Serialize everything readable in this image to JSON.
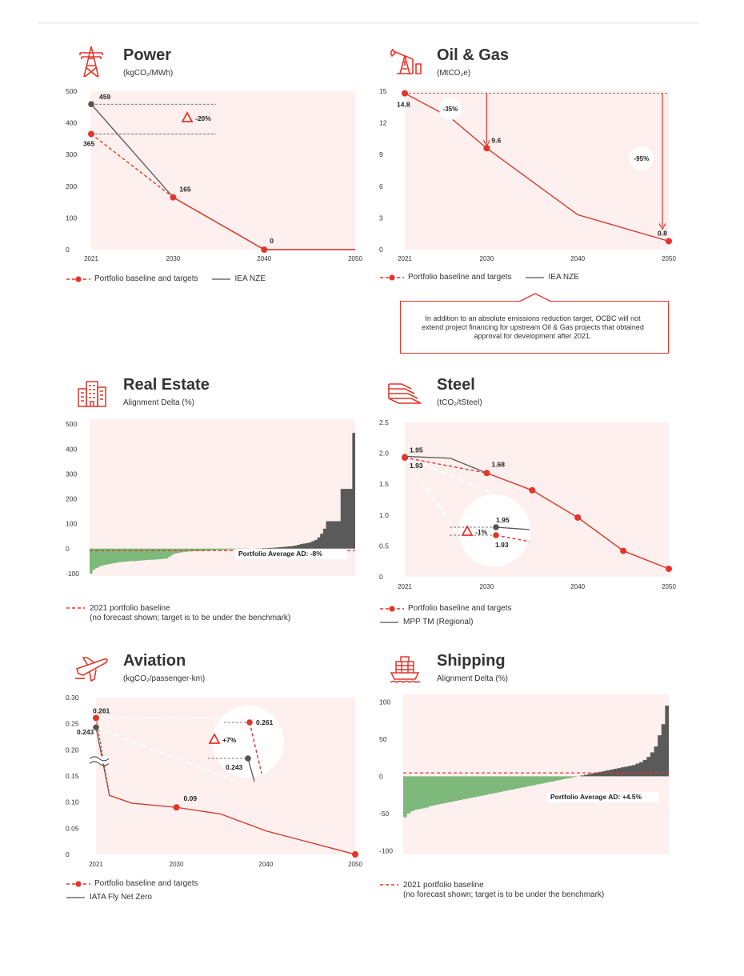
{
  "colors": {
    "accent": "#e4352a",
    "panel_bg": "#fdf0ee",
    "benchmark": "#555555",
    "green": "#7cb97a",
    "grey_bars": "#5a5a5a"
  },
  "panels": {
    "power": {
      "title": "Power",
      "subtitle": "(kgCO₂/MWh)",
      "icon": "power-tower-icon",
      "legend": [
        "Portfolio baseline and targets",
        "IEA NZE"
      ],
      "delta_label": "-20%",
      "chart_data": {
        "type": "line",
        "x_ticks": [
          "2021",
          "2030",
          "2040",
          "2050"
        ],
        "y_ticks": [
          "500",
          "400",
          "300",
          "200",
          "100",
          "0"
        ],
        "ylim": [
          0,
          500
        ],
        "series": [
          {
            "name": "Portfolio baseline and targets",
            "x": [
              2021,
              2030,
              2040
            ],
            "y": [
              365,
              165,
              0
            ],
            "labels": [
              "365",
              "165",
              "0"
            ]
          },
          {
            "name": "IEA NZE",
            "x": [
              2021,
              2030,
              2040,
              2050
            ],
            "y": [
              459,
              165,
              0,
              0
            ],
            "labels": [
              "459"
            ]
          }
        ]
      }
    },
    "oil_gas": {
      "title": "Oil & Gas",
      "subtitle": "(MtCO₂e)",
      "icon": "oil-pump-icon",
      "legend": [
        "Portfolio baseline and targets",
        "IEA NZE"
      ],
      "annotations": [
        "-35%",
        "-95%"
      ],
      "note": "In addition to an absolute emissions reduction target, OCBC will not extend project financing for upstream Oil & Gas projects that obtained approval for development after 2021.",
      "chart_data": {
        "type": "line",
        "x_ticks": [
          "2021",
          "2030",
          "2040",
          "2050"
        ],
        "y_ticks": [
          "15",
          "12",
          "9",
          "6",
          "3",
          "0"
        ],
        "ylim": [
          0,
          15
        ],
        "series": [
          {
            "name": "Portfolio baseline and targets",
            "x": [
              2021,
              2030,
              2050
            ],
            "y": [
              14.8,
              9.6,
              0.8
            ],
            "labels": [
              "14.8",
              "9.6",
              "0.8"
            ]
          },
          {
            "name": "IEA NZE",
            "x": [
              2021,
              2026,
              2030,
              2040,
              2050
            ],
            "y": [
              14.8,
              12.5,
              9.6,
              3.3,
              0.8
            ]
          }
        ]
      }
    },
    "real_estate": {
      "title": "Real Estate",
      "subtitle": "Alignment Delta (%)",
      "icon": "building-icon",
      "legend": [
        "2021 portfolio baseline",
        "(no forecast shown; target is to be under the benchmark)"
      ],
      "avg_label": "Portfolio Average AD: -8%",
      "chart_data": {
        "type": "area",
        "y_ticks": [
          "500",
          "400",
          "300",
          "200",
          "100",
          "0",
          "-100"
        ],
        "ylim": [
          -110,
          520
        ],
        "baseline": -8,
        "sorted_values": [
          -100,
          -85,
          -78,
          -72,
          -68,
          -65,
          -63,
          -60,
          -58,
          -56,
          -54,
          -53,
          -52,
          -51,
          -50,
          -50,
          -49,
          -48,
          -47,
          -46,
          -45,
          -45,
          -44,
          -43,
          -42,
          -41,
          -40,
          -32,
          -25,
          -20,
          -17,
          -15,
          -13,
          -12,
          -11,
          -10,
          -10,
          -9,
          -9,
          -8,
          -8,
          -7,
          -7,
          -6,
          -6,
          -5,
          -5,
          -4,
          -4,
          -3,
          -3,
          -2,
          -2,
          -1,
          -1,
          0,
          0,
          1,
          1,
          2,
          2,
          3,
          3,
          4,
          5,
          6,
          7,
          8,
          9,
          10,
          12,
          15,
          18,
          20,
          22,
          25,
          30,
          35,
          45,
          60,
          80,
          110,
          110,
          110,
          110,
          110,
          240,
          240,
          240,
          240,
          465
        ]
      }
    },
    "steel": {
      "title": "Steel",
      "subtitle": "(tCO₂/tSteel)",
      "icon": "steel-beams-icon",
      "legend": [
        "Portfolio baseline and targets",
        "MPP TM (Regional)"
      ],
      "delta_label": "-1%",
      "inset_labels": [
        "1.95",
        "1.93"
      ],
      "chart_data": {
        "type": "line",
        "x_ticks": [
          "2021",
          "2030",
          "2040",
          "2050"
        ],
        "y_ticks": [
          "2.5",
          "2.0",
          "1.5",
          "1.0",
          "0.5",
          "0"
        ],
        "ylim": [
          0,
          2.5
        ],
        "series": [
          {
            "name": "Portfolio baseline and targets",
            "x": [
              2021,
              2030,
              2035,
              2040,
              2045,
              2050
            ],
            "y": [
              1.93,
              1.68,
              1.4,
              0.96,
              0.42,
              0.13
            ],
            "labels": [
              "1.93",
              "1.68"
            ]
          },
          {
            "name": "MPP TM (Regional)",
            "x": [
              2021,
              2026,
              2030,
              2035,
              2040,
              2045,
              2050
            ],
            "y": [
              1.95,
              1.92,
              1.68,
              1.4,
              0.96,
              0.42,
              0.13
            ],
            "labels": [
              "1.95"
            ]
          }
        ]
      }
    },
    "aviation": {
      "title": "Aviation",
      "subtitle": "(kgCO₂/passenger-km)",
      "icon": "airplane-icon",
      "legend": [
        "Portfolio baseline and targets",
        "IATA Fly Net Zero"
      ],
      "delta_label": "+7%",
      "inset_labels": [
        "0.261",
        "0.243"
      ],
      "chart_data": {
        "type": "line",
        "x_ticks": [
          "2021",
          "2030",
          "2040",
          "2050"
        ],
        "y_ticks": [
          "0.30",
          "0.25",
          "0.20",
          "0.15",
          "0.10",
          "0.05",
          "0"
        ],
        "ylim": [
          0,
          0.3
        ],
        "series": [
          {
            "name": "Portfolio baseline and targets",
            "x": [
              2021,
              2030,
              2050
            ],
            "y": [
              0.261,
              0.09,
              0.0
            ],
            "labels": [
              "0.261",
              "0.09"
            ]
          },
          {
            "name": "IATA Fly Net Zero",
            "x": [
              2021,
              2022.5,
              2025,
              2030,
              2035,
              2040,
              2050
            ],
            "y": [
              0.243,
              0.113,
              0.098,
              0.09,
              0.077,
              0.045,
              0.0
            ],
            "labels": [
              "0.243"
            ]
          }
        ]
      }
    },
    "shipping": {
      "title": "Shipping",
      "subtitle": "Alignment Delta (%)",
      "icon": "ship-icon",
      "legend": [
        "2021 portfolio baseline",
        "(no forecast shown; target is to be under the benchmark)"
      ],
      "avg_label": "Portfolio Average AD: +4.5%",
      "chart_data": {
        "type": "area",
        "y_ticks": [
          "100",
          "50",
          "0",
          "-50",
          "-100"
        ],
        "ylim": [
          -105,
          110
        ],
        "baseline": 4.5,
        "sorted_values": [
          -55,
          -50,
          -47,
          -45,
          -44,
          -43,
          -42,
          -40,
          -39,
          -38,
          -37,
          -36,
          -35,
          -34,
          -33,
          -32,
          -31,
          -30,
          -29,
          -28,
          -27,
          -26,
          -25,
          -24,
          -23,
          -22,
          -21,
          -20,
          -19,
          -18,
          -17,
          -16,
          -15,
          -14,
          -13,
          -12,
          -11,
          -10,
          -9,
          -8,
          -7,
          -6,
          -5,
          -4,
          -3,
          -2,
          -1,
          0,
          1,
          2,
          3,
          4,
          5,
          6,
          7,
          8,
          9,
          10,
          11,
          12,
          13,
          14,
          15,
          17,
          19,
          22,
          26,
          32,
          40,
          55,
          70,
          95
        ]
      }
    }
  }
}
